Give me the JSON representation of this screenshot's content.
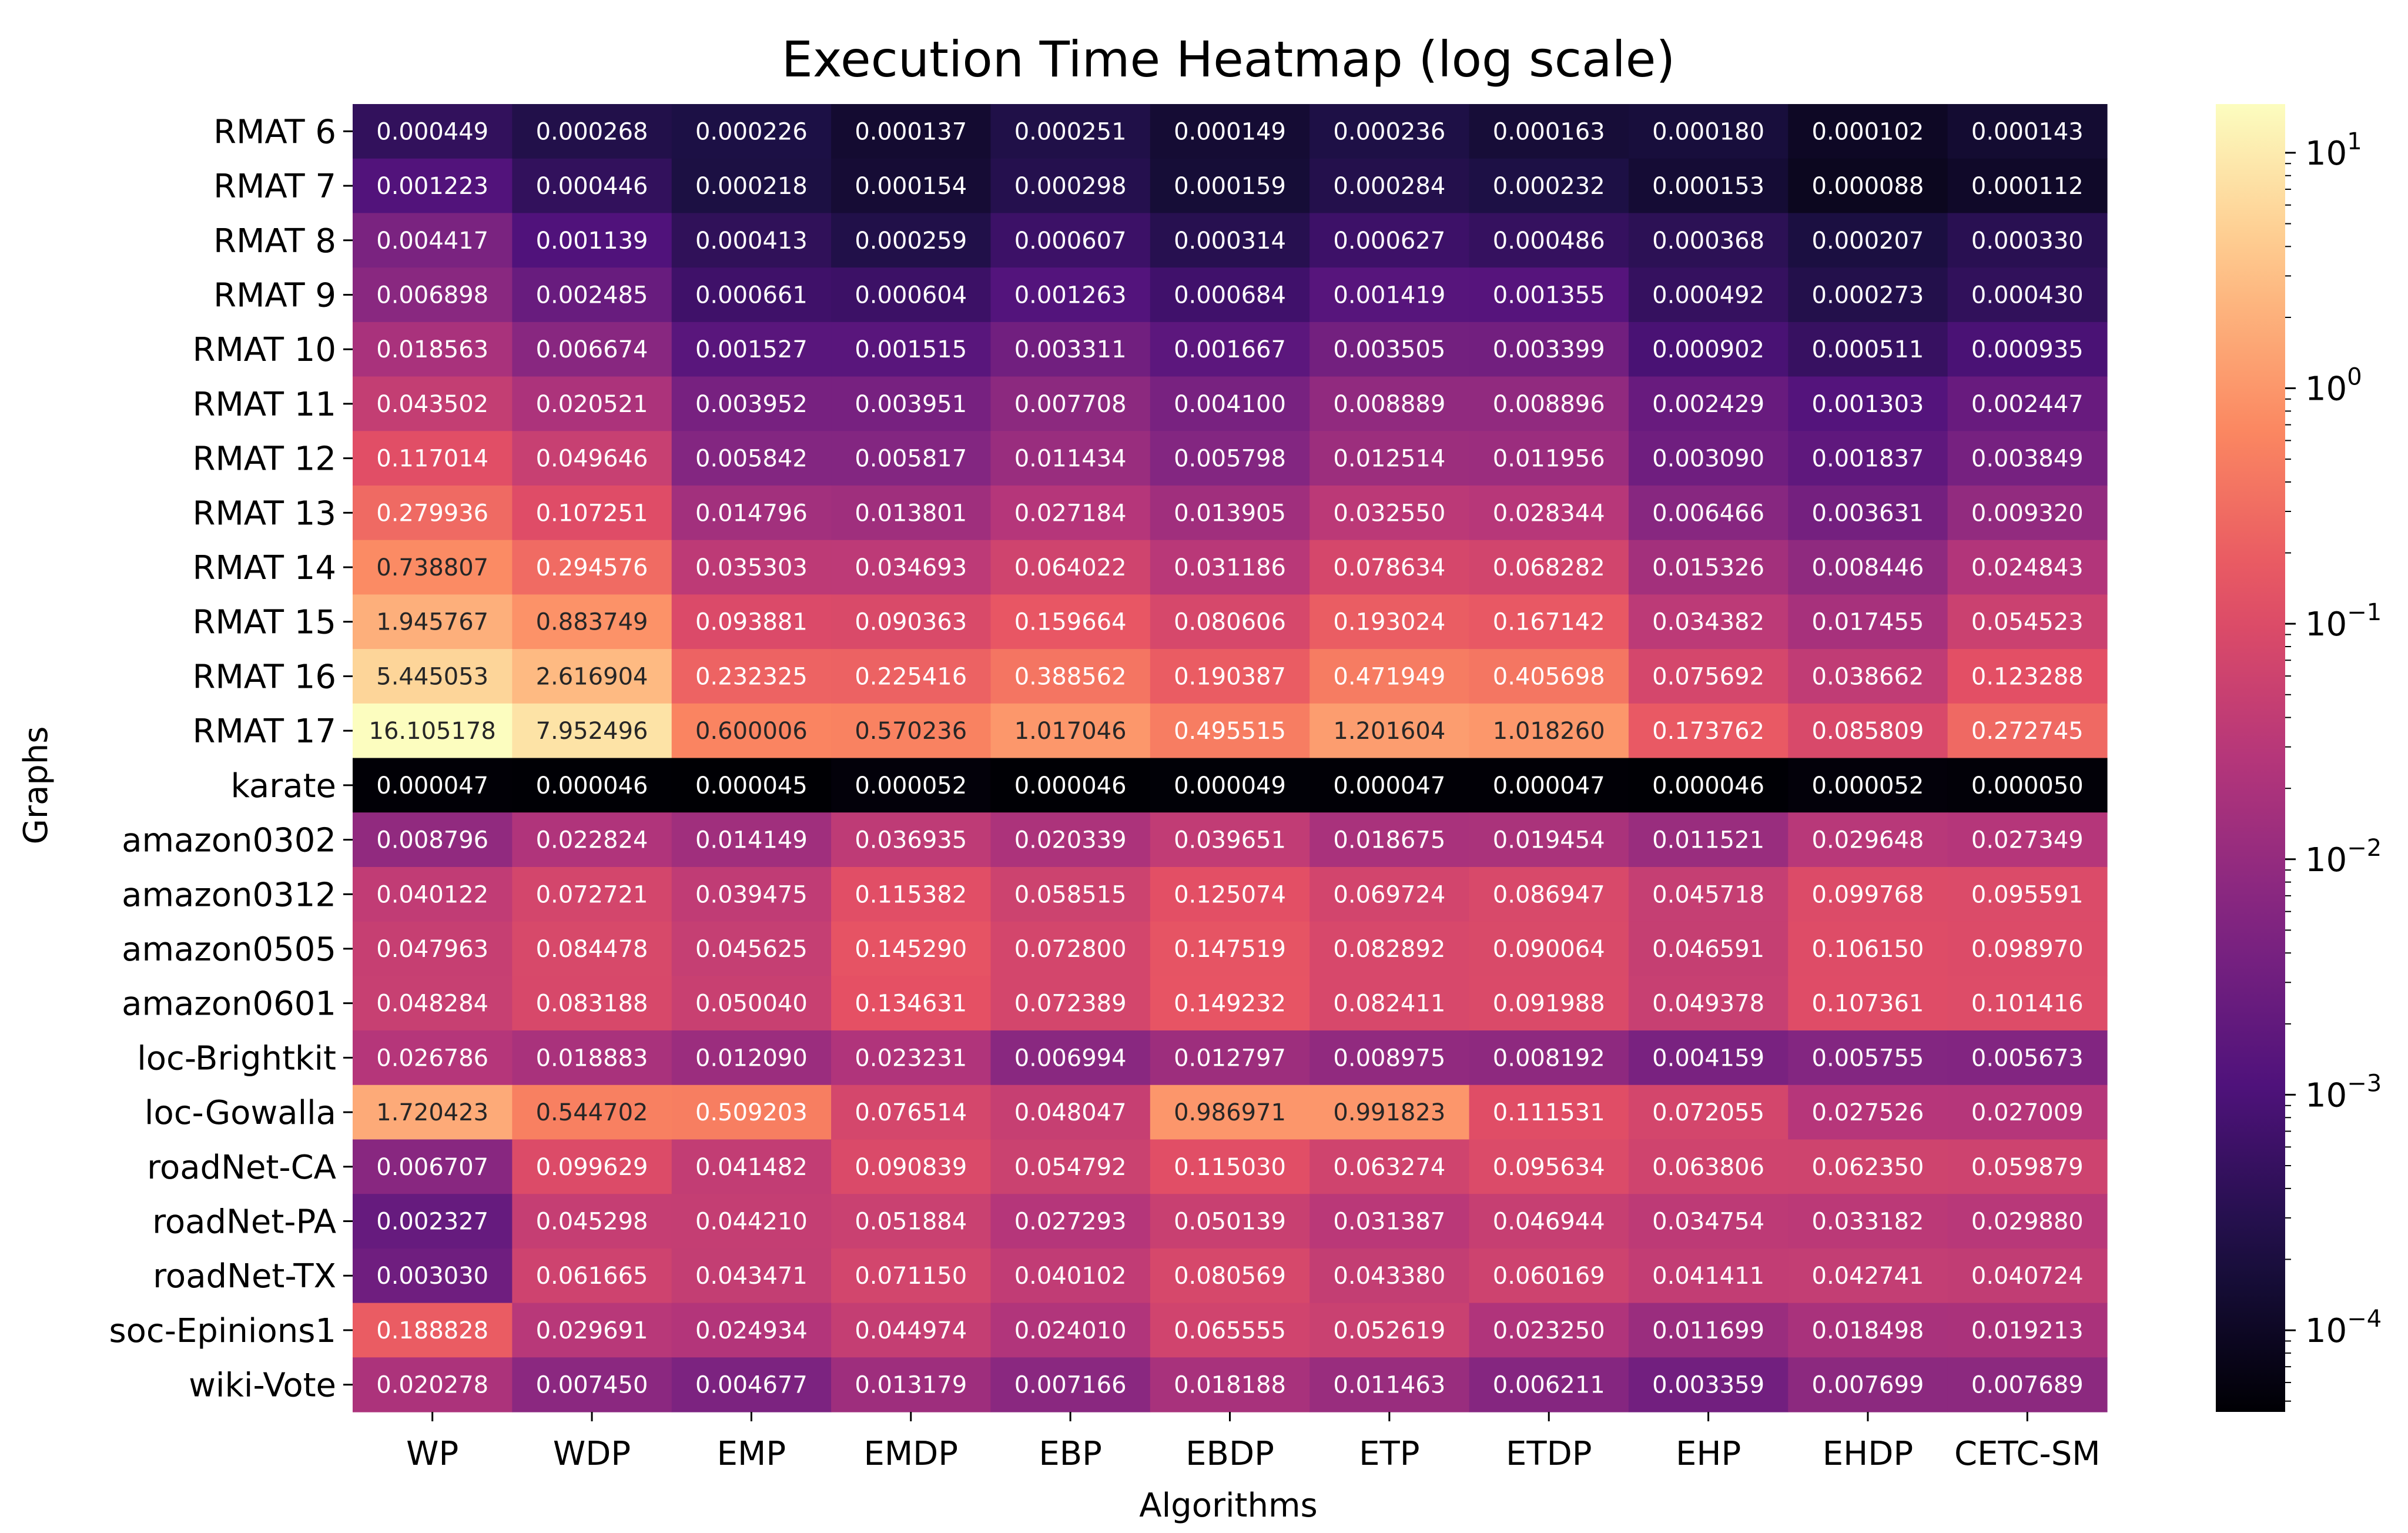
{
  "chart_data": {
    "type": "heatmap",
    "title": "Execution Time Heatmap (log scale)",
    "xlabel": "Algorithms",
    "ylabel": "Graphs",
    "scale": "log",
    "colormap": "magma",
    "vmin": 4.5e-05,
    "vmax": 16.105178,
    "x": [
      "WP",
      "WDP",
      "EMP",
      "EMDP",
      "EBP",
      "EBDP",
      "ETP",
      "ETDP",
      "EHP",
      "EHDP",
      "CETC-SM"
    ],
    "y": [
      "RMAT 6",
      "RMAT 7",
      "RMAT 8",
      "RMAT 9",
      "RMAT 10",
      "RMAT 11",
      "RMAT 12",
      "RMAT 13",
      "RMAT 14",
      "RMAT 15",
      "RMAT 16",
      "RMAT 17",
      "karate",
      "amazon0302",
      "amazon0312",
      "amazon0505",
      "amazon0601",
      "loc-Brightkit",
      "loc-Gowalla",
      "roadNet-CA",
      "roadNet-PA",
      "roadNet-TX",
      "soc-Epinions1",
      "wiki-Vote"
    ],
    "values": [
      [
        "0.000449",
        "0.000268",
        "0.000226",
        "0.000137",
        "0.000251",
        "0.000149",
        "0.000236",
        "0.000163",
        "0.000180",
        "0.000102",
        "0.000143"
      ],
      [
        "0.001223",
        "0.000446",
        "0.000218",
        "0.000154",
        "0.000298",
        "0.000159",
        "0.000284",
        "0.000232",
        "0.000153",
        "0.000088",
        "0.000112"
      ],
      [
        "0.004417",
        "0.001139",
        "0.000413",
        "0.000259",
        "0.000607",
        "0.000314",
        "0.000627",
        "0.000486",
        "0.000368",
        "0.000207",
        "0.000330"
      ],
      [
        "0.006898",
        "0.002485",
        "0.000661",
        "0.000604",
        "0.001263",
        "0.000684",
        "0.001419",
        "0.001355",
        "0.000492",
        "0.000273",
        "0.000430"
      ],
      [
        "0.018563",
        "0.006674",
        "0.001527",
        "0.001515",
        "0.003311",
        "0.001667",
        "0.003505",
        "0.003399",
        "0.000902",
        "0.000511",
        "0.000935"
      ],
      [
        "0.043502",
        "0.020521",
        "0.003952",
        "0.003951",
        "0.007708",
        "0.004100",
        "0.008889",
        "0.008896",
        "0.002429",
        "0.001303",
        "0.002447"
      ],
      [
        "0.117014",
        "0.049646",
        "0.005842",
        "0.005817",
        "0.011434",
        "0.005798",
        "0.012514",
        "0.011956",
        "0.003090",
        "0.001837",
        "0.003849"
      ],
      [
        "0.279936",
        "0.107251",
        "0.014796",
        "0.013801",
        "0.027184",
        "0.013905",
        "0.032550",
        "0.028344",
        "0.006466",
        "0.003631",
        "0.009320"
      ],
      [
        "0.738807",
        "0.294576",
        "0.035303",
        "0.034693",
        "0.064022",
        "0.031186",
        "0.078634",
        "0.068282",
        "0.015326",
        "0.008446",
        "0.024843"
      ],
      [
        "1.945767",
        "0.883749",
        "0.093881",
        "0.090363",
        "0.159664",
        "0.080606",
        "0.193024",
        "0.167142",
        "0.034382",
        "0.017455",
        "0.054523"
      ],
      [
        "5.445053",
        "2.616904",
        "0.232325",
        "0.225416",
        "0.388562",
        "0.190387",
        "0.471949",
        "0.405698",
        "0.075692",
        "0.038662",
        "0.123288"
      ],
      [
        "16.105178",
        "7.952496",
        "0.600006",
        "0.570236",
        "1.017046",
        "0.495515",
        "1.201604",
        "1.018260",
        "0.173762",
        "0.085809",
        "0.272745"
      ],
      [
        "0.000047",
        "0.000046",
        "0.000045",
        "0.000052",
        "0.000046",
        "0.000049",
        "0.000047",
        "0.000047",
        "0.000046",
        "0.000052",
        "0.000050"
      ],
      [
        "0.008796",
        "0.022824",
        "0.014149",
        "0.036935",
        "0.020339",
        "0.039651",
        "0.018675",
        "0.019454",
        "0.011521",
        "0.029648",
        "0.027349"
      ],
      [
        "0.040122",
        "0.072721",
        "0.039475",
        "0.115382",
        "0.058515",
        "0.125074",
        "0.069724",
        "0.086947",
        "0.045718",
        "0.099768",
        "0.095591"
      ],
      [
        "0.047963",
        "0.084478",
        "0.045625",
        "0.145290",
        "0.072800",
        "0.147519",
        "0.082892",
        "0.090064",
        "0.046591",
        "0.106150",
        "0.098970"
      ],
      [
        "0.048284",
        "0.083188",
        "0.050040",
        "0.134631",
        "0.072389",
        "0.149232",
        "0.082411",
        "0.091988",
        "0.049378",
        "0.107361",
        "0.101416"
      ],
      [
        "0.026786",
        "0.018883",
        "0.012090",
        "0.023231",
        "0.006994",
        "0.012797",
        "0.008975",
        "0.008192",
        "0.004159",
        "0.005755",
        "0.005673"
      ],
      [
        "1.720423",
        "0.544702",
        "0.509203",
        "0.076514",
        "0.048047",
        "0.986971",
        "0.991823",
        "0.111531",
        "0.072055",
        "0.027526",
        "0.027009"
      ],
      [
        "0.006707",
        "0.099629",
        "0.041482",
        "0.090839",
        "0.054792",
        "0.115030",
        "0.063274",
        "0.095634",
        "0.063806",
        "0.062350",
        "0.059879"
      ],
      [
        "0.002327",
        "0.045298",
        "0.044210",
        "0.051884",
        "0.027293",
        "0.050139",
        "0.031387",
        "0.046944",
        "0.034754",
        "0.033182",
        "0.029880"
      ],
      [
        "0.003030",
        "0.061665",
        "0.043471",
        "0.071150",
        "0.040102",
        "0.080569",
        "0.043380",
        "0.060169",
        "0.041411",
        "0.042741",
        "0.040724"
      ],
      [
        "0.188828",
        "0.029691",
        "0.024934",
        "0.044974",
        "0.024010",
        "0.065555",
        "0.052619",
        "0.023250",
        "0.011699",
        "0.018498",
        "0.019213"
      ],
      [
        "0.020278",
        "0.007450",
        "0.004677",
        "0.013179",
        "0.007166",
        "0.018188",
        "0.011463",
        "0.006211",
        "0.003359",
        "0.007699",
        "0.007689"
      ]
    ],
    "colorbar": {
      "ticks": [
        {
          "exp": 1,
          "mantissa": "10",
          "power": "1"
        },
        {
          "exp": 0,
          "mantissa": "10",
          "power": "0"
        },
        {
          "exp": -1,
          "mantissa": "10",
          "power": "−1"
        },
        {
          "exp": -2,
          "mantissa": "10",
          "power": "−2"
        },
        {
          "exp": -3,
          "mantissa": "10",
          "power": "−3"
        },
        {
          "exp": -4,
          "mantissa": "10",
          "power": "−4"
        }
      ]
    }
  }
}
